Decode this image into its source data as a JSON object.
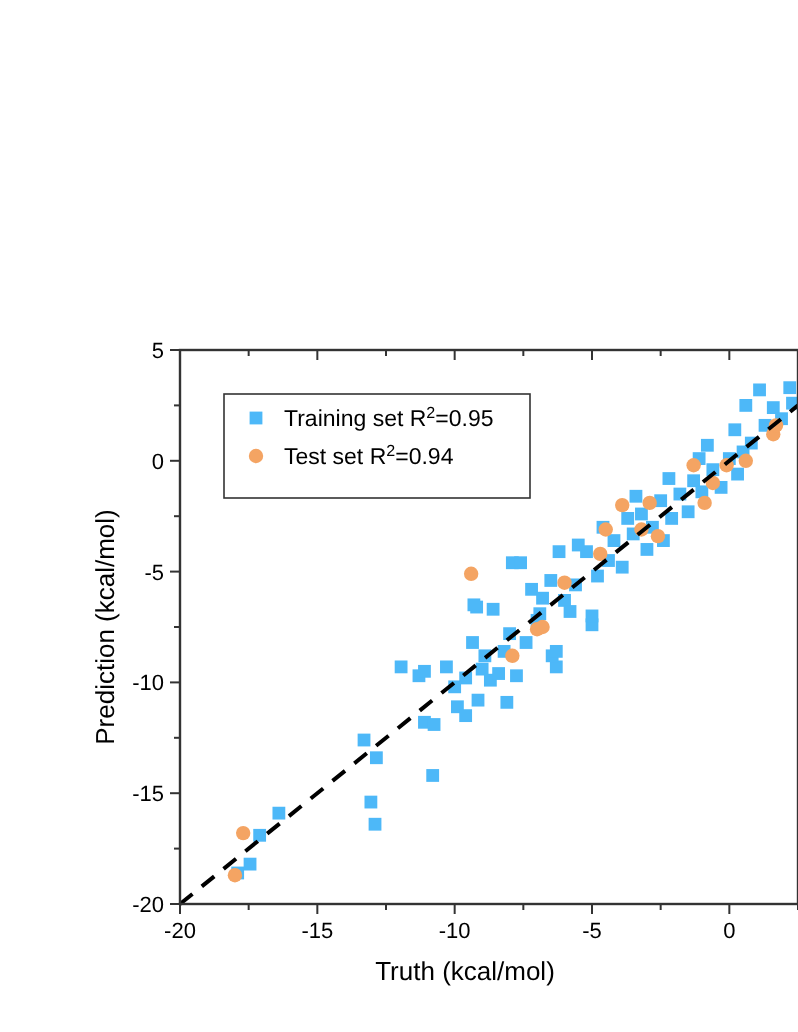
{
  "chart_data": {
    "type": "scatter",
    "xlabel": "Truth (kcal/mol)",
    "ylabel": "Prediction (kcal/mol)",
    "xlim": [
      -20,
      2.5
    ],
    "ylim": [
      -20,
      5
    ],
    "xticks": [
      -20,
      {
        "value": -17.5,
        "label": null
      },
      -15,
      {
        "value": -12.5,
        "label": null
      },
      -10,
      {
        "value": -7.5,
        "label": null
      },
      -5,
      {
        "value": -2.5,
        "label": null
      },
      0,
      {
        "value": 2.5,
        "label": null
      }
    ],
    "yticks": [
      -20,
      {
        "value": -17.5,
        "label": null
      },
      -15,
      {
        "value": -12.5,
        "label": null
      },
      -10,
      {
        "value": -7.5,
        "label": null
      },
      -5,
      {
        "value": -2.5,
        "label": null
      },
      0,
      {
        "value": 2.5,
        "label": null
      },
      5
    ],
    "grid": false,
    "legend": "top left",
    "series": [
      {
        "name": "Training set R$^{2}$=0.95",
        "marker": "square",
        "color": "#4db8f8",
        "x": [
          -17.9,
          -17.45,
          -17.1,
          -16.4,
          -13.3,
          -12.85,
          -13.05,
          -12.9,
          -10.8,
          -11.1,
          -10.75,
          -11.95,
          -11.3,
          -11.1,
          -10.3,
          -9.9,
          -9.6,
          -9.15,
          -8.1,
          -9.35,
          -9.6,
          -9.0,
          -8.7,
          -8.4,
          -7.75,
          -8.2,
          -8.6,
          -9.2,
          -9.3,
          -8.0,
          -7.4,
          -6.9,
          -6.3,
          -6.45,
          -6.3,
          -5.0,
          -5.0,
          -7.9,
          -7.6,
          -7.2,
          -6.8,
          -6.5,
          -6.2,
          -6.0,
          -5.6,
          -5.2,
          -5.5,
          -4.8,
          -4.4,
          -4.2,
          -3.9,
          -3.7,
          -3.5,
          -3.2,
          -3.0,
          -2.8,
          -2.5,
          -2.2,
          -2.1,
          -1.8,
          -1.5,
          -1.3,
          -1.0,
          -0.8,
          -0.6,
          -0.3,
          0.0,
          0.2,
          0.3,
          0.6,
          0.8,
          1.1,
          1.3,
          1.6,
          1.9,
          2.2,
          2.3,
          -7.0,
          -8.9,
          -10.0,
          -5.8,
          -4.6,
          -3.4,
          -2.4,
          -1.1,
          0.5
        ],
        "values": [
          -18.6,
          -18.2,
          -16.9,
          -15.9,
          -12.6,
          -13.4,
          -15.4,
          -16.4,
          -14.2,
          -11.8,
          -11.9,
          -9.3,
          -9.7,
          -9.5,
          -9.3,
          -11.1,
          -11.5,
          -10.8,
          -10.9,
          -8.2,
          -9.8,
          -9.4,
          -9.9,
          -9.6,
          -9.7,
          -8.6,
          -6.7,
          -6.6,
          -6.5,
          -7.8,
          -8.2,
          -6.9,
          -9.3,
          -8.8,
          -8.6,
          -7.4,
          -7.0,
          -4.6,
          -4.6,
          -5.8,
          -6.2,
          -5.4,
          -4.1,
          -6.3,
          -5.6,
          -4.1,
          -3.8,
          -5.2,
          -4.5,
          -3.6,
          -4.8,
          -2.6,
          -3.3,
          -2.4,
          -4.0,
          -3.0,
          -1.8,
          -0.8,
          -2.6,
          -1.5,
          -2.3,
          -0.9,
          -1.4,
          0.7,
          -0.4,
          -1.2,
          0.1,
          1.4,
          -0.6,
          2.5,
          0.8,
          3.2,
          1.6,
          2.4,
          1.9,
          3.3,
          2.6,
          -7.2,
          -8.8,
          -10.2,
          -6.8,
          -3.0,
          -1.6,
          -3.6,
          0.1,
          0.4
        ]
      },
      {
        "name": "Test set R$^{2}$=0.94",
        "marker": "circle",
        "color": "#f4a463",
        "x": [
          -9.4,
          -3.9,
          -4.5,
          -1.3,
          0.6,
          1.6,
          -0.9,
          -0.6,
          -2.9,
          -2.6,
          -3.2,
          -4.7,
          -6.0,
          -7.0,
          -6.8,
          -7.9,
          -0.1,
          1.7,
          -17.7,
          -18.0
        ],
        "values": [
          -5.1,
          -2.0,
          -3.1,
          -0.2,
          0.0,
          1.2,
          -1.9,
          -1.0,
          -1.9,
          -3.4,
          -3.1,
          -4.2,
          -5.5,
          -7.6,
          -7.5,
          -8.8,
          -0.2,
          1.6,
          -16.8,
          -18.7
        ]
      },
      {
        "type": "line",
        "color": "#000000",
        "line_style": "dashed",
        "x": [
          -20,
          2.5
        ],
        "values": [
          -20,
          2.5
        ]
      }
    ]
  }
}
